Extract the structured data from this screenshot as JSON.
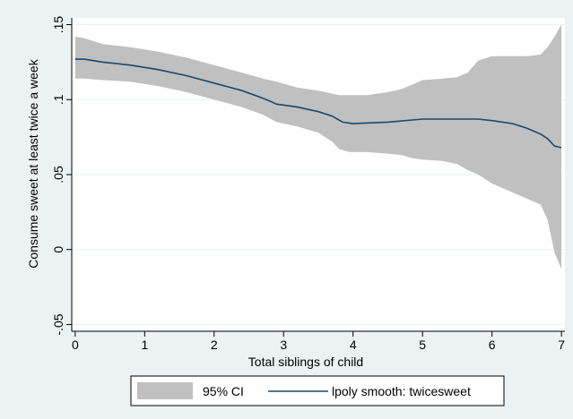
{
  "chart_data": {
    "type": "area",
    "xlabel": "Total siblings of child",
    "ylabel": "Consume sweet at least twice a week",
    "xlim": [
      0,
      7
    ],
    "ylim": [
      -0.05,
      0.15
    ],
    "x_ticks": [
      0,
      1,
      2,
      3,
      4,
      5,
      6,
      7
    ],
    "x_tick_labels": [
      "0",
      "1",
      "2",
      "3",
      "4",
      "5",
      "6",
      "7"
    ],
    "y_ticks": [
      -0.05,
      0,
      0.05,
      0.1,
      0.15
    ],
    "y_tick_labels": [
      "-.05",
      "0",
      ".05",
      ".1",
      ".15"
    ],
    "grid": "horizontal",
    "legend_position": "bottom",
    "series": [
      {
        "name": "95% CI",
        "kind": "band",
        "color": "#c0c0c0",
        "x": [
          0,
          0.13,
          0.4,
          0.8,
          1.2,
          1.6,
          2.0,
          2.4,
          2.7,
          2.9,
          3.2,
          3.5,
          3.7,
          3.8,
          3.95,
          4.2,
          4.5,
          4.7,
          4.85,
          5.0,
          5.3,
          5.5,
          5.65,
          5.8,
          6.0,
          6.2,
          6.5,
          6.7,
          6.8,
          6.9,
          7.0
        ],
        "lower": [
          0.114,
          0.114,
          0.113,
          0.112,
          0.109,
          0.105,
          0.1,
          0.095,
          0.09,
          0.085,
          0.082,
          0.078,
          0.072,
          0.067,
          0.065,
          0.065,
          0.064,
          0.063,
          0.061,
          0.06,
          0.059,
          0.057,
          0.053,
          0.05,
          0.044,
          0.04,
          0.034,
          0.03,
          0.02,
          -0.002,
          -0.013
        ],
        "upper": [
          0.142,
          0.141,
          0.137,
          0.135,
          0.132,
          0.128,
          0.123,
          0.118,
          0.114,
          0.112,
          0.108,
          0.106,
          0.104,
          0.103,
          0.103,
          0.103,
          0.105,
          0.107,
          0.11,
          0.113,
          0.114,
          0.115,
          0.118,
          0.126,
          0.129,
          0.129,
          0.129,
          0.13,
          0.135,
          0.142,
          0.15
        ]
      },
      {
        "name": "lpoly smooth: twicesweet",
        "kind": "line",
        "color": "#1a476f",
        "x": [
          0,
          0.13,
          0.4,
          0.8,
          1.2,
          1.6,
          2.0,
          2.4,
          2.7,
          2.8,
          2.9,
          3.2,
          3.5,
          3.7,
          3.85,
          4.0,
          4.5,
          5.0,
          5.5,
          5.8,
          6.0,
          6.3,
          6.5,
          6.7,
          6.8,
          6.9,
          7.0
        ],
        "y": [
          0.127,
          0.127,
          0.125,
          0.123,
          0.12,
          0.116,
          0.111,
          0.106,
          0.101,
          0.099,
          0.097,
          0.095,
          0.092,
          0.089,
          0.085,
          0.084,
          0.085,
          0.087,
          0.087,
          0.087,
          0.086,
          0.084,
          0.081,
          0.077,
          0.074,
          0.069,
          0.068
        ]
      }
    ]
  }
}
